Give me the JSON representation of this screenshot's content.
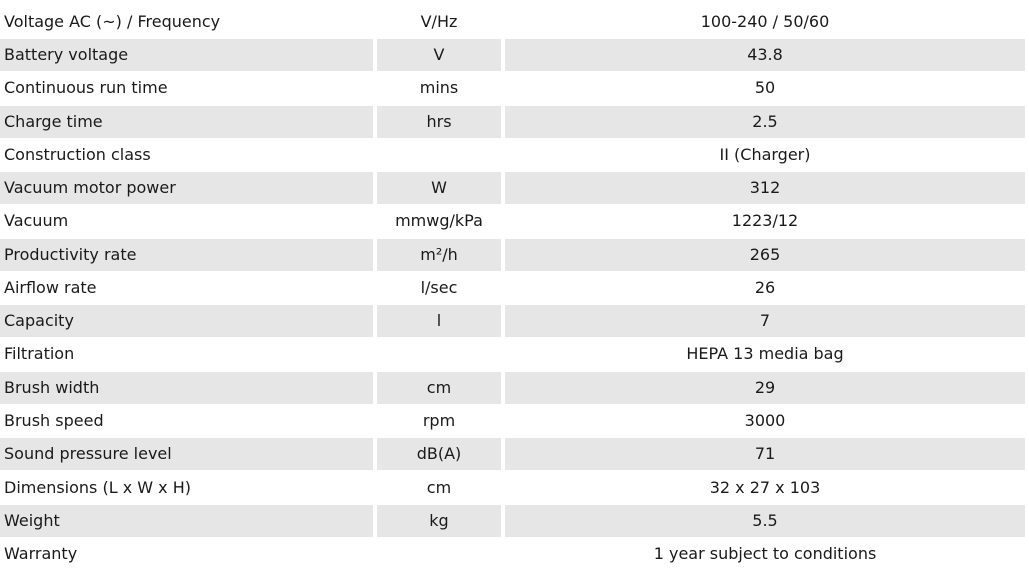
{
  "specs": [
    {
      "label": "Voltage AC (~) / Frequency",
      "unit": "V/Hz",
      "value": "100-240 / 50/60",
      "shaded": false
    },
    {
      "label": "Battery voltage",
      "unit": "V",
      "value": "43.8",
      "shaded": true
    },
    {
      "label": "Continuous run time",
      "unit": "mins",
      "value": "50",
      "shaded": false
    },
    {
      "label": "Charge time",
      "unit": "hrs",
      "value": "2.5",
      "shaded": true
    },
    {
      "label": "Construction class",
      "unit": "",
      "value": "II (Charger)",
      "shaded": false
    },
    {
      "label": "Vacuum motor power",
      "unit": "W",
      "value": "312",
      "shaded": true
    },
    {
      "label": "Vacuum",
      "unit": "mmwg/kPa",
      "value": "1223/12",
      "shaded": false
    },
    {
      "label": "Productivity rate",
      "unit": "m²/h",
      "value": "265",
      "shaded": true
    },
    {
      "label": "Airflow rate",
      "unit": "l/sec",
      "value": "26",
      "shaded": false
    },
    {
      "label": "Capacity",
      "unit": "l",
      "value": "7",
      "shaded": true
    },
    {
      "label": "Filtration",
      "unit": "",
      "value": "HEPA 13 media bag",
      "shaded": false
    },
    {
      "label": "Brush width",
      "unit": "cm",
      "value": "29",
      "shaded": true
    },
    {
      "label": "Brush speed",
      "unit": "rpm",
      "value": "3000",
      "shaded": false
    },
    {
      "label": "Sound pressure level",
      "unit": "dB(A)",
      "value": "71",
      "shaded": true
    },
    {
      "label": "Dimensions (L x W x H)",
      "unit": "cm",
      "value": "32 x 27 x 103",
      "shaded": false
    },
    {
      "label": "Weight",
      "unit": "kg",
      "value": "5.5",
      "shaded": true
    },
    {
      "label": "Warranty",
      "unit": "",
      "value": "1 year subject to conditions",
      "shaded": false
    }
  ],
  "colors": {
    "row_shade": "#e6e6e6",
    "background": "#ffffff",
    "text": "#1a1a1a"
  }
}
